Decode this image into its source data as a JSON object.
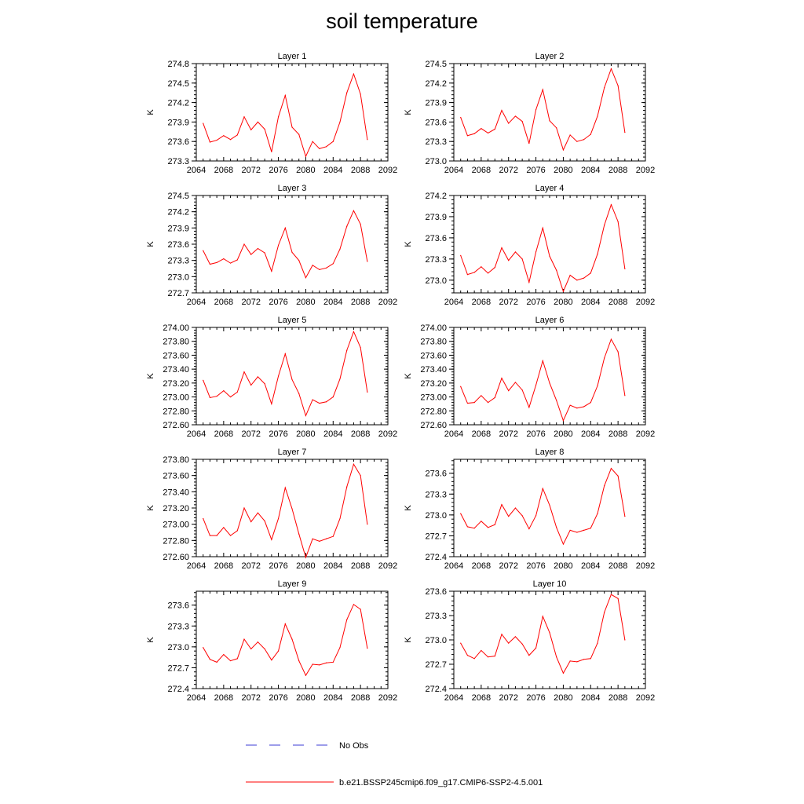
{
  "title": "soil temperature",
  "legend": [
    {
      "label": "No Obs",
      "color": "#3b3bd6",
      "style": "dashed"
    },
    {
      "label": "b.e21.BSSP245cmip6.f09_g17.CMIP6-SSP2-4.5.001",
      "color": "#ff0000",
      "style": "solid"
    }
  ],
  "chart_data": [
    {
      "type": "line",
      "title": "Layer 1",
      "ylabel": "K",
      "xlim": [
        2064,
        2092
      ],
      "xticks": [
        "2064",
        "2068",
        "2072",
        "2076",
        "2080",
        "2084",
        "2088",
        "2092"
      ],
      "ylim": [
        273.3,
        274.8
      ],
      "yticks": [
        "273.3",
        "273.6",
        "273.9",
        "274.2",
        "274.5",
        "274.8"
      ],
      "x": [
        2065,
        2066,
        2067,
        2068,
        2069,
        2070,
        2071,
        2072,
        2073,
        2074,
        2075,
        2076,
        2077,
        2078,
        2079,
        2080,
        2081,
        2082,
        2083,
        2084,
        2085,
        2086,
        2087,
        2088,
        2089
      ],
      "series": [
        {
          "name": "b.e21.BSSP245cmip6.f09_g17.CMIP6-SSP2-4.5.001",
          "values": [
            273.88,
            273.59,
            273.62,
            273.69,
            273.63,
            273.7,
            273.98,
            273.78,
            273.9,
            273.79,
            273.44,
            273.98,
            274.31,
            273.82,
            273.71,
            273.37,
            273.6,
            273.49,
            273.52,
            273.6,
            273.9,
            274.35,
            274.64,
            274.33,
            273.63
          ]
        }
      ]
    },
    {
      "type": "line",
      "title": "Layer 2",
      "ylabel": "K",
      "xlim": [
        2064,
        2092
      ],
      "xticks": [
        "2064",
        "2068",
        "2072",
        "2076",
        "2080",
        "2084",
        "2088",
        "2092"
      ],
      "ylim": [
        273.0,
        274.5
      ],
      "yticks": [
        "273.0",
        "273.3",
        "273.6",
        "273.9",
        "274.2",
        "274.5"
      ],
      "x": [
        2065,
        2066,
        2067,
        2068,
        2069,
        2070,
        2071,
        2072,
        2073,
        2074,
        2075,
        2076,
        2077,
        2078,
        2079,
        2080,
        2081,
        2082,
        2083,
        2084,
        2085,
        2086,
        2087,
        2088,
        2089
      ],
      "series": [
        {
          "name": "b.e21.BSSP245cmip6.f09_g17.CMIP6-SSP2-4.5.001",
          "values": [
            273.67,
            273.39,
            273.42,
            273.5,
            273.43,
            273.49,
            273.78,
            273.58,
            273.69,
            273.61,
            273.27,
            273.79,
            274.1,
            273.62,
            273.51,
            273.17,
            273.4,
            273.3,
            273.33,
            273.41,
            273.69,
            274.13,
            274.42,
            274.16,
            273.44
          ]
        }
      ]
    },
    {
      "type": "line",
      "title": "Layer 3",
      "ylabel": "K",
      "xlim": [
        2064,
        2092
      ],
      "xticks": [
        "2064",
        "2068",
        "2072",
        "2076",
        "2080",
        "2084",
        "2088",
        "2092"
      ],
      "ylim": [
        272.7,
        274.5
      ],
      "yticks": [
        "272.7",
        "273.0",
        "273.3",
        "273.6",
        "273.9",
        "274.2",
        "274.5"
      ],
      "x": [
        2065,
        2066,
        2067,
        2068,
        2069,
        2070,
        2071,
        2072,
        2073,
        2074,
        2075,
        2076,
        2077,
        2078,
        2079,
        2080,
        2081,
        2082,
        2083,
        2084,
        2085,
        2086,
        2087,
        2088,
        2089
      ],
      "series": [
        {
          "name": "b.e21.BSSP245cmip6.f09_g17.CMIP6-SSP2-4.5.001",
          "values": [
            273.48,
            273.23,
            273.26,
            273.33,
            273.25,
            273.31,
            273.6,
            273.41,
            273.52,
            273.44,
            273.1,
            273.58,
            273.9,
            273.45,
            273.3,
            272.98,
            273.21,
            273.13,
            273.16,
            273.24,
            273.51,
            273.93,
            274.22,
            273.97,
            273.28
          ]
        }
      ]
    },
    {
      "type": "line",
      "title": "Layer 4",
      "ylabel": "K",
      "xlim": [
        2064,
        2092
      ],
      "xticks": [
        "2064",
        "2068",
        "2072",
        "2076",
        "2080",
        "2084",
        "2088",
        "2092"
      ],
      "ylim": [
        272.82,
        274.2
      ],
      "yticks": [
        "273.0",
        "273.3",
        "273.6",
        "273.9",
        "274.2"
      ],
      "x": [
        2065,
        2066,
        2067,
        2068,
        2069,
        2070,
        2071,
        2072,
        2073,
        2074,
        2075,
        2076,
        2077,
        2078,
        2079,
        2080,
        2081,
        2082,
        2083,
        2084,
        2085,
        2086,
        2087,
        2088,
        2089
      ],
      "series": [
        {
          "name": "b.e21.BSSP245cmip6.f09_g17.CMIP6-SSP2-4.5.001",
          "values": [
            273.35,
            273.08,
            273.11,
            273.19,
            273.1,
            273.18,
            273.46,
            273.28,
            273.4,
            273.3,
            272.97,
            273.4,
            273.74,
            273.34,
            273.14,
            272.84,
            273.07,
            273.0,
            273.03,
            273.1,
            273.37,
            273.78,
            274.07,
            273.83,
            273.16
          ]
        }
      ]
    },
    {
      "type": "line",
      "title": "Layer 5",
      "ylabel": "K",
      "xlim": [
        2064,
        2092
      ],
      "xticks": [
        "2064",
        "2068",
        "2072",
        "2076",
        "2080",
        "2084",
        "2088",
        "2092"
      ],
      "ylim": [
        272.6,
        274.0
      ],
      "yticks": [
        "272.60",
        "272.80",
        "273.00",
        "273.20",
        "273.40",
        "273.60",
        "273.80",
        "274.00"
      ],
      "x": [
        2065,
        2066,
        2067,
        2068,
        2069,
        2070,
        2071,
        2072,
        2073,
        2074,
        2075,
        2076,
        2077,
        2078,
        2079,
        2080,
        2081,
        2082,
        2083,
        2084,
        2085,
        2086,
        2087,
        2088,
        2089
      ],
      "series": [
        {
          "name": "b.e21.BSSP245cmip6.f09_g17.CMIP6-SSP2-4.5.001",
          "values": [
            273.24,
            272.99,
            273.01,
            273.09,
            273.0,
            273.07,
            273.36,
            273.17,
            273.29,
            273.19,
            272.9,
            273.3,
            273.62,
            273.25,
            273.05,
            272.73,
            272.96,
            272.91,
            272.93,
            273.0,
            273.26,
            273.67,
            273.94,
            273.71,
            273.07
          ]
        }
      ]
    },
    {
      "type": "line",
      "title": "Layer 6",
      "ylabel": "K",
      "xlim": [
        2064,
        2092
      ],
      "xticks": [
        "2064",
        "2068",
        "2072",
        "2076",
        "2080",
        "2084",
        "2088",
        "2092"
      ],
      "ylim": [
        272.6,
        274.0
      ],
      "yticks": [
        "272.60",
        "272.80",
        "273.00",
        "273.20",
        "273.40",
        "273.60",
        "273.80",
        "274.00"
      ],
      "x": [
        2065,
        2066,
        2067,
        2068,
        2069,
        2070,
        2071,
        2072,
        2073,
        2074,
        2075,
        2076,
        2077,
        2078,
        2079,
        2080,
        2081,
        2082,
        2083,
        2084,
        2085,
        2086,
        2087,
        2088,
        2089
      ],
      "series": [
        {
          "name": "b.e21.BSSP245cmip6.f09_g17.CMIP6-SSP2-4.5.001",
          "values": [
            273.15,
            272.91,
            272.92,
            273.02,
            272.92,
            272.99,
            273.27,
            273.09,
            273.21,
            273.1,
            272.85,
            273.17,
            273.52,
            273.2,
            272.95,
            272.66,
            272.88,
            272.84,
            272.86,
            272.92,
            273.16,
            273.56,
            273.83,
            273.65,
            273.02
          ]
        }
      ]
    },
    {
      "type": "line",
      "title": "Layer 7",
      "ylabel": "K",
      "xlim": [
        2064,
        2092
      ],
      "xticks": [
        "2064",
        "2068",
        "2072",
        "2076",
        "2080",
        "2084",
        "2088",
        "2092"
      ],
      "ylim": [
        272.6,
        273.8
      ],
      "yticks": [
        "272.60",
        "272.80",
        "273.00",
        "273.20",
        "273.40",
        "273.60",
        "273.80"
      ],
      "x": [
        2065,
        2066,
        2067,
        2068,
        2069,
        2070,
        2071,
        2072,
        2073,
        2074,
        2075,
        2076,
        2077,
        2078,
        2079,
        2080,
        2081,
        2082,
        2083,
        2084,
        2085,
        2086,
        2087,
        2088,
        2089
      ],
      "series": [
        {
          "name": "b.e21.BSSP245cmip6.f09_g17.CMIP6-SSP2-4.5.001",
          "values": [
            273.07,
            272.86,
            272.86,
            272.96,
            272.86,
            272.92,
            273.2,
            273.03,
            273.14,
            273.04,
            272.81,
            273.07,
            273.45,
            273.19,
            272.88,
            272.59,
            272.82,
            272.79,
            272.82,
            272.85,
            273.07,
            273.46,
            273.74,
            273.6,
            273.0
          ]
        }
      ]
    },
    {
      "type": "line",
      "title": "Layer 8",
      "ylabel": "K",
      "xlim": [
        2064,
        2092
      ],
      "xticks": [
        "2064",
        "2068",
        "2072",
        "2076",
        "2080",
        "2084",
        "2088",
        "2092"
      ],
      "ylim": [
        272.4,
        273.8
      ],
      "yticks": [
        "272.4",
        "272.7",
        "273.0",
        "273.3",
        "273.6"
      ],
      "x": [
        2065,
        2066,
        2067,
        2068,
        2069,
        2070,
        2071,
        2072,
        2073,
        2074,
        2075,
        2076,
        2077,
        2078,
        2079,
        2080,
        2081,
        2082,
        2083,
        2084,
        2085,
        2086,
        2087,
        2088,
        2089
      ],
      "series": [
        {
          "name": "b.e21.BSSP245cmip6.f09_g17.CMIP6-SSP2-4.5.001",
          "values": [
            273.02,
            272.83,
            272.81,
            272.91,
            272.82,
            272.86,
            273.15,
            272.98,
            273.1,
            272.99,
            272.8,
            272.99,
            273.38,
            273.14,
            272.82,
            272.58,
            272.78,
            272.75,
            272.78,
            272.81,
            273.02,
            273.42,
            273.67,
            273.56,
            272.98
          ]
        }
      ]
    },
    {
      "type": "line",
      "title": "Layer 9",
      "ylabel": "K",
      "xlim": [
        2064,
        2092
      ],
      "xticks": [
        "2064",
        "2068",
        "2072",
        "2076",
        "2080",
        "2084",
        "2088",
        "2092"
      ],
      "ylim": [
        272.4,
        273.8
      ],
      "yticks": [
        "272.4",
        "272.7",
        "273.0",
        "273.3",
        "273.6"
      ],
      "x": [
        2065,
        2066,
        2067,
        2068,
        2069,
        2070,
        2071,
        2072,
        2073,
        2074,
        2075,
        2076,
        2077,
        2078,
        2079,
        2080,
        2081,
        2082,
        2083,
        2084,
        2085,
        2086,
        2087,
        2088,
        2089
      ],
      "series": [
        {
          "name": "b.e21.BSSP245cmip6.f09_g17.CMIP6-SSP2-4.5.001",
          "values": [
            272.99,
            272.82,
            272.78,
            272.89,
            272.8,
            272.83,
            273.11,
            272.97,
            273.07,
            272.97,
            272.81,
            272.94,
            273.33,
            273.11,
            272.8,
            272.59,
            272.75,
            272.74,
            272.77,
            272.78,
            272.99,
            273.39,
            273.61,
            273.54,
            272.98
          ]
        }
      ]
    },
    {
      "type": "line",
      "title": "Layer 10",
      "ylabel": "K",
      "xlim": [
        2064,
        2092
      ],
      "xticks": [
        "2064",
        "2068",
        "2072",
        "2076",
        "2080",
        "2084",
        "2088",
        "2092"
      ],
      "ylim": [
        272.4,
        273.6
      ],
      "yticks": [
        "272.4",
        "272.7",
        "273.0",
        "273.3",
        "273.6"
      ],
      "x": [
        2065,
        2066,
        2067,
        2068,
        2069,
        2070,
        2071,
        2072,
        2073,
        2074,
        2075,
        2076,
        2077,
        2078,
        2079,
        2080,
        2081,
        2082,
        2083,
        2084,
        2085,
        2086,
        2087,
        2088,
        2089
      ],
      "series": [
        {
          "name": "b.e21.BSSP245cmip6.f09_g17.CMIP6-SSP2-4.5.001",
          "values": [
            272.96,
            272.81,
            272.77,
            272.87,
            272.79,
            272.8,
            273.07,
            272.96,
            273.04,
            272.95,
            272.81,
            272.9,
            273.29,
            273.09,
            272.79,
            272.59,
            272.74,
            272.73,
            272.76,
            272.77,
            272.96,
            273.34,
            273.56,
            273.51,
            273.0
          ]
        }
      ]
    }
  ]
}
